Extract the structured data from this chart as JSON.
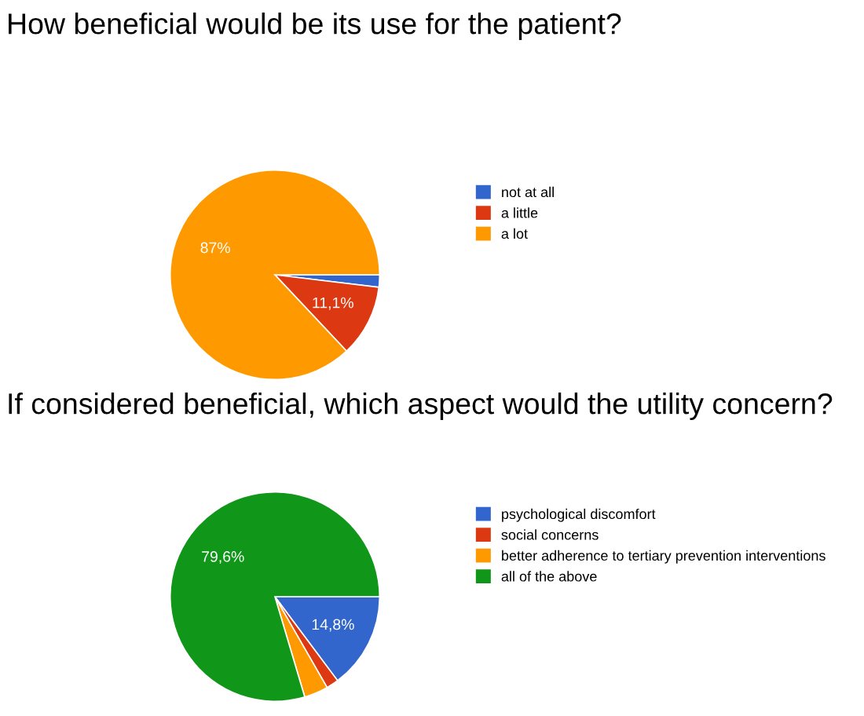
{
  "chart_data": [
    {
      "type": "pie",
      "title": "How beneficial would be its use for the patient?",
      "categories": [
        "not at all",
        "a little",
        "a lot"
      ],
      "values": [
        1.9,
        11.1,
        87
      ],
      "colors": [
        "#3366cc",
        "#dc3912",
        "#ff9900"
      ],
      "value_labels": [
        null,
        "11,1%",
        "87%"
      ],
      "legend": "right"
    },
    {
      "type": "pie",
      "title": "If considered beneficial, which aspect would the utility concern?",
      "categories": [
        "psychological discomfort",
        "social concerns",
        "better adherence to tertiary prevention interventions",
        "all of the above"
      ],
      "values": [
        14.8,
        1.9,
        3.7,
        79.6
      ],
      "colors": [
        "#3366cc",
        "#dc3912",
        "#ff9900",
        "#109618"
      ],
      "value_labels": [
        "14,8%",
        null,
        null,
        "79,6%"
      ],
      "legend": "right"
    }
  ]
}
